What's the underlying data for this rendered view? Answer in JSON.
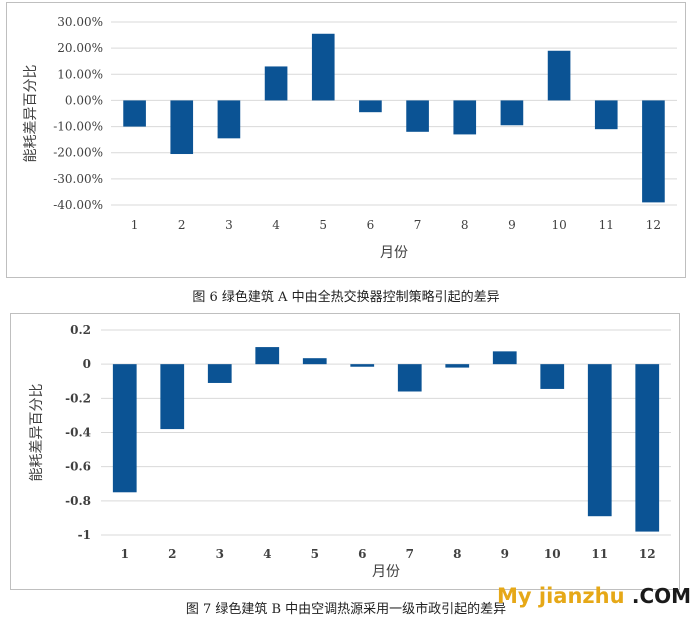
{
  "chart_data": [
    {
      "type": "bar",
      "title": "",
      "xlabel": "月份",
      "ylabel": "能耗差异百分比",
      "categories": [
        "1",
        "2",
        "3",
        "4",
        "5",
        "6",
        "7",
        "8",
        "9",
        "10",
        "11",
        "12"
      ],
      "values": [
        -10,
        -20.5,
        -14.5,
        13,
        25.5,
        -4.5,
        -12,
        -13,
        -9.5,
        19,
        -11,
        -39
      ],
      "ylim": [
        -40,
        30
      ],
      "yticks": [
        30,
        20,
        10,
        0,
        -10,
        -20,
        -30,
        -40
      ],
      "ytick_labels": [
        "30.00%",
        "20.00%",
        "10.00%",
        "0.00%",
        "-10.00%",
        "-20.00%",
        "-30.00%",
        "-40.00%"
      ],
      "grid": true,
      "color": "#0b5394"
    },
    {
      "type": "bar",
      "title": "",
      "xlabel": "月份",
      "ylabel": "能耗差异百分比",
      "categories": [
        "1",
        "2",
        "3",
        "4",
        "5",
        "6",
        "7",
        "8",
        "9",
        "10",
        "11",
        "12"
      ],
      "values": [
        -0.75,
        -0.38,
        -0.11,
        0.1,
        0.035,
        -0.015,
        -0.16,
        -0.02,
        0.075,
        -0.145,
        -0.89,
        -0.98
      ],
      "ylim": [
        -1,
        0.2
      ],
      "yticks": [
        0.2,
        0,
        -0.2,
        -0.4,
        -0.6,
        -0.8,
        -1
      ],
      "ytick_labels": [
        "0.2",
        "0",
        "-0.2",
        "-0.4",
        "-0.6",
        "-0.8",
        "-1"
      ],
      "grid": true,
      "color": "#0b5394"
    }
  ],
  "captions": {
    "figure6": "图 6  绿色建筑 A 中由全热交换器控制策略引起的差异",
    "figure7": "图 7  绿色建筑 B 中由空调热源采用一级市政引起的差异"
  },
  "watermark": {
    "part1": "My jianzhu",
    "part2": ".COM"
  }
}
